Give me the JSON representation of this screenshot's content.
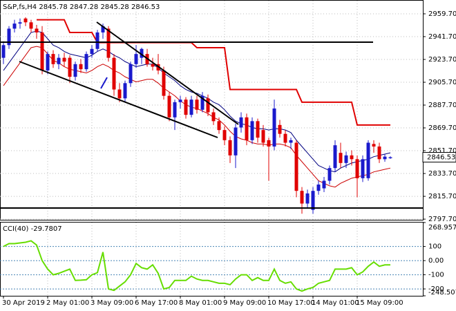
{
  "chart_data": {
    "type": "candlestick",
    "title": "S&P,fs,H4",
    "last_ohlc": [
      2845.78,
      2847.28,
      2845.28,
      2846.53
    ],
    "categories": [
      "30 Apr 2019",
      null,
      null,
      null,
      null,
      null,
      null,
      null,
      "2 May 01:00",
      null,
      null,
      null,
      null,
      null,
      null,
      null,
      "3 May 09:00",
      null,
      null,
      null,
      null,
      null,
      null,
      null,
      "6 May 17:00",
      null,
      null,
      null,
      null,
      null,
      null,
      null,
      "8 May 01:00",
      null,
      null,
      null,
      null,
      null,
      null,
      null,
      "9 May 09:00",
      null,
      null,
      null,
      null,
      null,
      null,
      null,
      "10 May 17:00",
      null,
      null,
      null,
      null,
      null,
      null,
      null,
      "14 May 01:00",
      null,
      null,
      null,
      null,
      null,
      null,
      null,
      "15 May 09:00",
      null,
      null,
      null,
      null,
      null,
      null
    ],
    "open": [
      2925,
      2935,
      2948,
      2952,
      2956,
      2953,
      2948,
      2945,
      2915,
      2928,
      2920,
      2925,
      2925,
      2910,
      2920,
      2916,
      2928,
      2932,
      2945,
      2948,
      2925,
      2900,
      2893,
      2905,
      2920,
      2925,
      2928,
      2920,
      2920,
      2915,
      2895,
      2878,
      2890,
      2892,
      2880,
      2892,
      2884,
      2893,
      2882,
      2875,
      2868,
      2860,
      2848,
      2870,
      2878,
      2860,
      2875,
      2868,
      2860,
      2855,
      2872,
      2865,
      2858,
      2858,
      2820,
      2810,
      2805,
      2820,
      2822,
      2828,
      2838,
      2850,
      2842,
      2848,
      2845,
      2830,
      2830,
      2857,
      2855,
      2845,
      2845.78
    ],
    "high": [
      2938,
      2950,
      2955,
      2956,
      2957,
      2955,
      2951,
      2950,
      2930,
      2931,
      2928,
      2929,
      2927,
      2922,
      2924,
      2930,
      2935,
      2947,
      2952,
      2950,
      2928,
      2905,
      2907,
      2922,
      2935,
      2933,
      2932,
      2925,
      2928,
      2918,
      2898,
      2892,
      2895,
      2894,
      2895,
      2895,
      2898,
      2896,
      2885,
      2878,
      2871,
      2863,
      2873,
      2882,
      2881,
      2878,
      2877,
      2872,
      2862,
      2892,
      2876,
      2868,
      2862,
      2860,
      2823,
      2821,
      2823,
      2828,
      2831,
      2840,
      2860,
      2858,
      2851,
      2852,
      2848,
      2848,
      2860,
      2860,
      2858,
      2849,
      2847.28
    ],
    "low": [
      2920,
      2932,
      2945,
      2948,
      2950,
      2945,
      2940,
      2912,
      2912,
      2917,
      2916,
      2918,
      2905,
      2907,
      2913,
      2914,
      2925,
      2930,
      2940,
      2922,
      2895,
      2890,
      2890,
      2902,
      2917,
      2920,
      2918,
      2915,
      2912,
      2892,
      2875,
      2868,
      2885,
      2877,
      2878,
      2881,
      2882,
      2879,
      2872,
      2865,
      2856,
      2842,
      2838,
      2866,
      2856,
      2857,
      2858,
      2855,
      2828,
      2852,
      2862,
      2855,
      2853,
      2815,
      2802,
      2806,
      2802,
      2817,
      2819,
      2825,
      2835,
      2838,
      2838,
      2840,
      2815,
      2827,
      2828,
      2850,
      2842,
      2843,
      2845.28
    ],
    "close": [
      2935,
      2948,
      2952,
      2953,
      2953,
      2948,
      2945,
      2915,
      2928,
      2920,
      2925,
      2922,
      2910,
      2920,
      2916,
      2928,
      2932,
      2945,
      2950,
      2925,
      2900,
      2893,
      2905,
      2920,
      2928,
      2932,
      2920,
      2918,
      2915,
      2895,
      2878,
      2890,
      2892,
      2880,
      2892,
      2884,
      2895,
      2882,
      2875,
      2868,
      2860,
      2848,
      2870,
      2878,
      2860,
      2875,
      2862,
      2858,
      2855,
      2885,
      2865,
      2858,
      2860,
      2820,
      2810,
      2818,
      2820,
      2825,
      2828,
      2838,
      2856,
      2842,
      2848,
      2845,
      2830,
      2845,
      2858,
      2855,
      2845,
      2847,
      2846.53
    ],
    "up_color": "#1a1acc",
    "down_color": "#e00000",
    "series": [
      {
        "color": "#000080",
        "values": [
          2915,
          2921,
          2927,
          2933,
          2939,
          2945,
          2946,
          2945,
          2940,
          2935,
          2933,
          2930,
          2928,
          2927,
          2926,
          2925,
          2927,
          2930,
          2932,
          2930,
          2927,
          2925,
          2922,
          2920,
          2918,
          2919,
          2920,
          2920,
          2917,
          2913,
          2910,
          2907,
          2903,
          2900,
          2898,
          2897,
          2895,
          2893,
          2890,
          2888,
          2884,
          2879,
          2875,
          2873,
          2872,
          2870,
          2869,
          2869,
          2868,
          2869,
          2869,
          2868,
          2866,
          2860,
          2855,
          2850,
          2845,
          2840,
          2838,
          2836,
          2835,
          2838,
          2840,
          2842,
          2843,
          2844,
          2845,
          2847,
          2848,
          2849,
          2850
        ]
      },
      {
        "color": "#cc0000",
        "values": [
          2903,
          2909,
          2915,
          2921,
          2927,
          2933,
          2934,
          2933,
          2928,
          2923,
          2921,
          2918,
          2916,
          2915,
          2914,
          2913,
          2915,
          2918,
          2920,
          2918,
          2915,
          2913,
          2910,
          2908,
          2906,
          2907,
          2908,
          2908,
          2905,
          2901,
          2898,
          2895,
          2891,
          2888,
          2886,
          2885,
          2883,
          2881,
          2878,
          2876,
          2872,
          2867,
          2863,
          2861,
          2860,
          2858,
          2857,
          2857,
          2856,
          2857,
          2857,
          2856,
          2854,
          2848,
          2843,
          2838,
          2833,
          2828,
          2826,
          2824,
          2823,
          2826,
          2828,
          2830,
          2831,
          2832,
          2833,
          2835,
          2836,
          2837,
          2838
        ]
      },
      {
        "color": "#e00000",
        "values": [
          null,
          null,
          null,
          null,
          null,
          null,
          2955,
          2955,
          2955,
          2955,
          2955,
          2955,
          2945,
          2945,
          2945,
          2945,
          2945,
          2937,
          2937,
          2937,
          2937,
          2937,
          2937,
          2937,
          2937,
          2937,
          2937,
          2937,
          2937,
          2937,
          2937,
          2937,
          2937,
          2937,
          2937,
          2933,
          2933,
          2933,
          2933,
          2933,
          2933,
          2900,
          2900,
          2900,
          2900,
          2900,
          2900,
          2900,
          2900,
          2900,
          2900,
          2900,
          2900,
          2900,
          2890,
          2890,
          2890,
          2890,
          2890,
          2890,
          2890,
          2890,
          2890,
          2890,
          2872,
          2872,
          2872,
          2872,
          2872,
          2872,
          2872
        ]
      }
    ],
    "ylim": [
      2797.2,
      2970.6
    ],
    "yticks": [
      {
        "value": 2959.7,
        "label": "2959.70"
      },
      {
        "value": 2941.7,
        "label": "2941.70"
      },
      {
        "value": 2923.7,
        "label": "2923.70"
      },
      {
        "value": 2905.7,
        "label": "2905.70"
      },
      {
        "value": 2887.7,
        "label": "2887.70"
      },
      {
        "value": 2869.7,
        "label": "2869.70"
      },
      {
        "value": 2851.7,
        "label": "2851.70"
      },
      {
        "value": 2833.7,
        "label": "2833.70"
      },
      {
        "value": 2815.7,
        "label": "2815.70"
      },
      {
        "value": 2797.7,
        "label": "2797.70"
      }
    ],
    "current_price": 2846.53,
    "grid": true,
    "indicator": {
      "name": "CCI(40)",
      "color": "#66dd00",
      "values": [
        100,
        120,
        120,
        125,
        130,
        140,
        110,
        0,
        -60,
        -100,
        -90,
        -75,
        -60,
        -140,
        -138,
        -135,
        -100,
        -85,
        60,
        -200,
        -210,
        -180,
        -150,
        -100,
        -20,
        -50,
        -60,
        -30,
        -90,
        -200,
        -190,
        -140,
        -140,
        -140,
        -110,
        -130,
        -140,
        -140,
        -150,
        -160,
        -160,
        -170,
        -130,
        -100,
        -100,
        -140,
        -120,
        -140,
        -140,
        -60,
        -140,
        -160,
        -150,
        -200,
        -215,
        -200,
        -190,
        -160,
        -150,
        -140,
        -60,
        -60,
        -60,
        -50,
        -100,
        -80,
        -40,
        -10,
        -40,
        -30,
        -29.7807
      ],
      "ylim": [
        -248.5077,
        268.9571
      ],
      "yticks": [
        268.9571,
        100,
        {
          "value": 0,
          "label": "0.00"
        },
        -100,
        -200,
        -248.5077
      ]
    }
  }
}
